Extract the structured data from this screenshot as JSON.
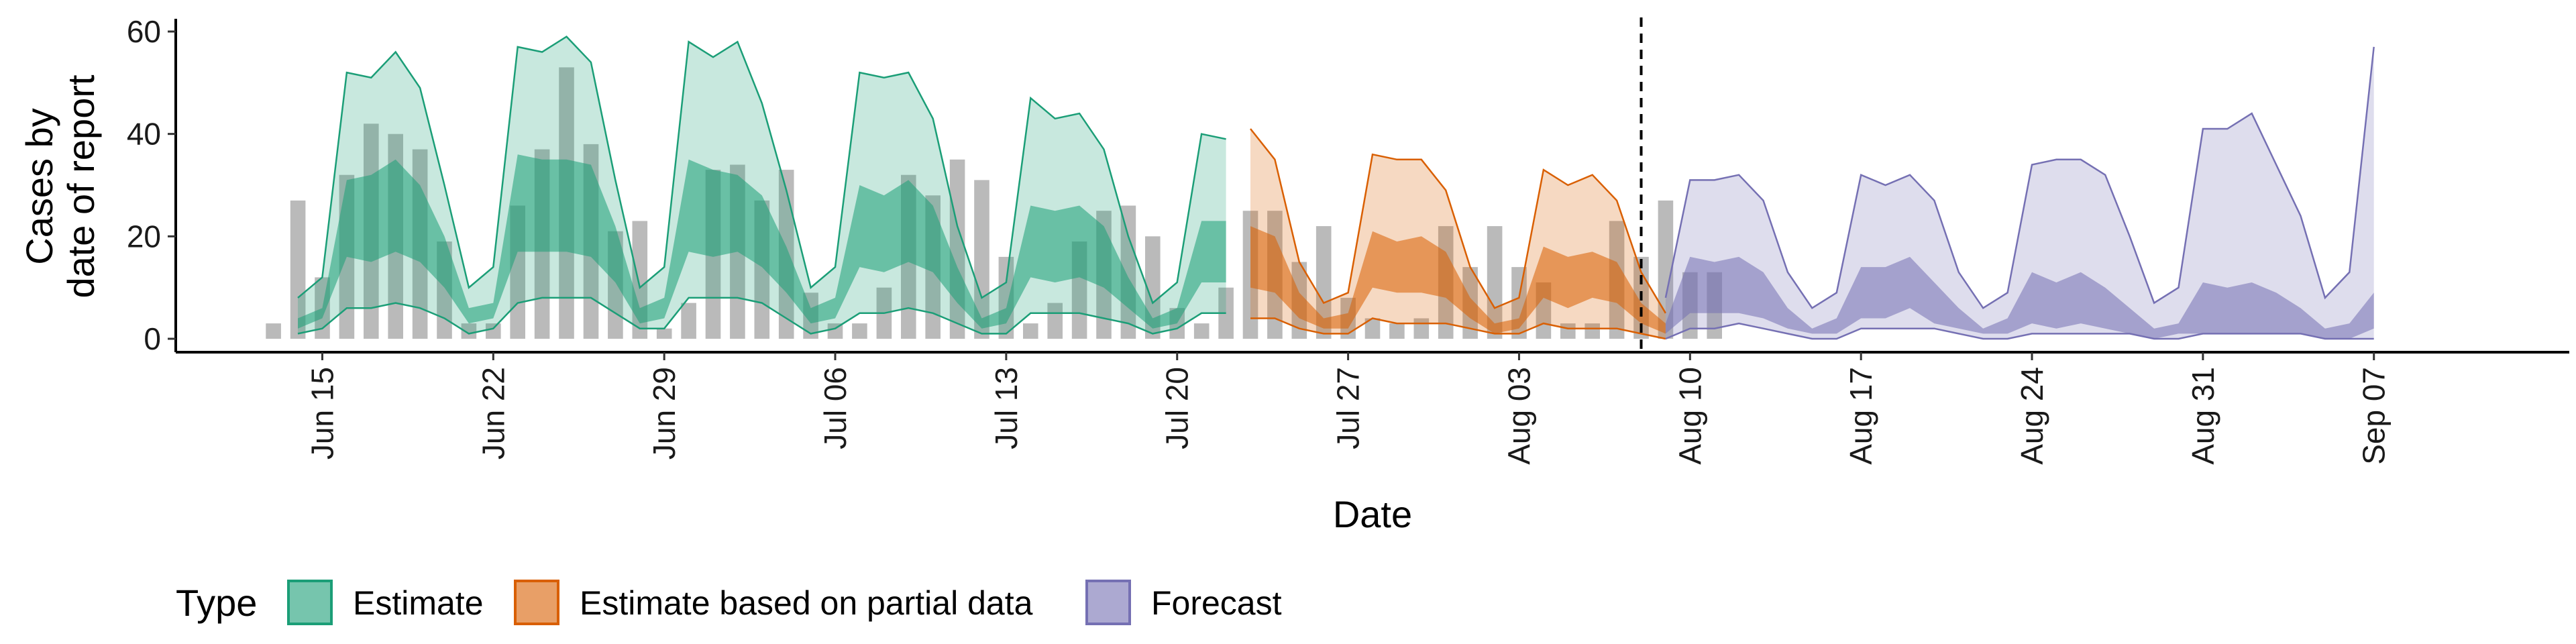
{
  "chart_data": {
    "type": "area",
    "title": "",
    "xlabel": "Date",
    "ylabel_lines": [
      "Cases by",
      "date of report"
    ],
    "ylim": [
      0,
      62
    ],
    "y_ticks": [
      0,
      20,
      40,
      60
    ],
    "x_range": [
      "2020-06-09",
      "2020-09-15"
    ],
    "x_ticks": [
      {
        "date": "2020-06-15",
        "label": "Jun 15"
      },
      {
        "date": "2020-06-22",
        "label": "Jun 22"
      },
      {
        "date": "2020-06-29",
        "label": "Jun 29"
      },
      {
        "date": "2020-07-06",
        "label": "Jul 06"
      },
      {
        "date": "2020-07-13",
        "label": "Jul 13"
      },
      {
        "date": "2020-07-20",
        "label": "Jul 20"
      },
      {
        "date": "2020-07-27",
        "label": "Jul 27"
      },
      {
        "date": "2020-08-03",
        "label": "Aug 03"
      },
      {
        "date": "2020-08-10",
        "label": "Aug 10"
      },
      {
        "date": "2020-08-17",
        "label": "Aug 17"
      },
      {
        "date": "2020-08-24",
        "label": "Aug 24"
      },
      {
        "date": "2020-08-31",
        "label": "Aug 31"
      },
      {
        "date": "2020-09-07",
        "label": "Sep 07"
      }
    ],
    "vline_date": "2020-08-08",
    "legend": {
      "title": "Type",
      "position": "bottom",
      "entries": [
        {
          "label": "Estimate",
          "fill": "#1b9e77",
          "stroke": "#1b9e77"
        },
        {
          "label": "Estimate based on partial data",
          "fill": "#d95f02",
          "stroke": "#d95f02"
        },
        {
          "label": "Forecast",
          "fill": "#7570b3",
          "stroke": "#7570b3"
        }
      ]
    },
    "bars": {
      "color": "#a0a0a0",
      "start": "2020-06-13",
      "values": [
        3,
        27,
        12,
        32,
        42,
        40,
        37,
        19,
        3,
        3,
        26,
        37,
        53,
        38,
        21,
        23,
        2,
        7,
        33,
        34,
        27,
        33,
        9,
        3,
        3,
        10,
        32,
        28,
        35,
        31,
        16,
        3,
        7,
        19,
        25,
        26,
        20,
        6,
        3,
        10,
        25,
        25,
        15,
        22,
        8,
        4,
        3,
        4,
        22,
        14,
        22,
        14,
        11,
        3,
        3,
        23,
        16,
        27,
        13,
        13
      ]
    },
    "series": [
      {
        "name": "Estimate",
        "start": "2020-06-14",
        "color": "#1b9e77",
        "outer_upper": [
          8,
          12,
          52,
          51,
          56,
          49,
          30,
          10,
          14,
          57,
          56,
          59,
          54,
          31,
          10,
          14,
          58,
          55,
          58,
          46,
          29,
          10,
          14,
          52,
          51,
          52,
          43,
          22,
          8,
          11,
          47,
          43,
          44,
          37,
          20,
          7,
          11,
          40,
          39
        ],
        "outer_lower": [
          1,
          2,
          6,
          6,
          7,
          6,
          4,
          1,
          2,
          7,
          8,
          8,
          8,
          5,
          2,
          2,
          8,
          8,
          8,
          7,
          4,
          1,
          2,
          5,
          5,
          6,
          5,
          3,
          1,
          1,
          5,
          5,
          5,
          4,
          3,
          1,
          2,
          5,
          5
        ],
        "inner_upper": [
          4,
          6,
          31,
          32,
          35,
          30,
          20,
          6,
          7,
          36,
          35,
          35,
          34,
          22,
          6,
          8,
          35,
          33,
          32,
          28,
          18,
          6,
          8,
          30,
          28,
          31,
          26,
          14,
          4,
          6,
          26,
          25,
          26,
          22,
          12,
          4,
          6,
          23,
          23
        ],
        "inner_lower": [
          2,
          4,
          16,
          15,
          17,
          15,
          10,
          3,
          4,
          17,
          17,
          17,
          16,
          11,
          3,
          4,
          17,
          16,
          17,
          14,
          9,
          3,
          4,
          14,
          13,
          15,
          13,
          7,
          2,
          3,
          12,
          11,
          12,
          10,
          6,
          2,
          3,
          11,
          11
        ]
      },
      {
        "name": "Estimate based on partial data",
        "start": "2020-07-23",
        "color": "#d95f02",
        "outer_upper": [
          41,
          35,
          15,
          7,
          9,
          36,
          35,
          35,
          29,
          14,
          6,
          8,
          33,
          30,
          32,
          27,
          13,
          5
        ],
        "outer_lower": [
          4,
          4,
          2,
          1,
          1,
          4,
          3,
          3,
          3,
          2,
          1,
          1,
          3,
          2,
          2,
          2,
          1,
          0
        ],
        "inner_upper": [
          22,
          20,
          9,
          4,
          5,
          21,
          19,
          20,
          17,
          8,
          3,
          4,
          18,
          16,
          17,
          15,
          7,
          3
        ],
        "inner_lower": [
          10,
          9,
          4,
          2,
          2,
          10,
          9,
          9,
          8,
          4,
          1,
          2,
          8,
          6,
          8,
          7,
          3,
          1
        ]
      },
      {
        "name": "Forecast",
        "start": "2020-08-09",
        "color": "#7570b3",
        "outer_upper": [
          8,
          31,
          31,
          32,
          27,
          13,
          6,
          9,
          32,
          30,
          32,
          27,
          13,
          6,
          9,
          34,
          35,
          35,
          32,
          20,
          7,
          10,
          41,
          41,
          44,
          34,
          24,
          8,
          13,
          57
        ],
        "outer_lower": [
          0,
          2,
          2,
          3,
          2,
          1,
          0,
          0,
          2,
          2,
          2,
          2,
          1,
          0,
          0,
          1,
          1,
          1,
          1,
          1,
          0,
          0,
          1,
          1,
          1,
          1,
          1,
          0,
          0,
          0
        ],
        "inner_upper": [
          3,
          16,
          15,
          16,
          13,
          6,
          2,
          4,
          14,
          14,
          16,
          11,
          6,
          2,
          4,
          13,
          11,
          13,
          10,
          6,
          2,
          3,
          11,
          10,
          11,
          9,
          6,
          2,
          3,
          9
        ],
        "inner_lower": [
          1,
          5,
          5,
          5,
          4,
          2,
          1,
          1,
          4,
          4,
          6,
          3,
          2,
          1,
          1,
          3,
          2,
          3,
          2,
          1,
          0,
          1,
          1,
          1,
          1,
          1,
          1,
          0,
          0,
          2
        ]
      }
    ]
  }
}
